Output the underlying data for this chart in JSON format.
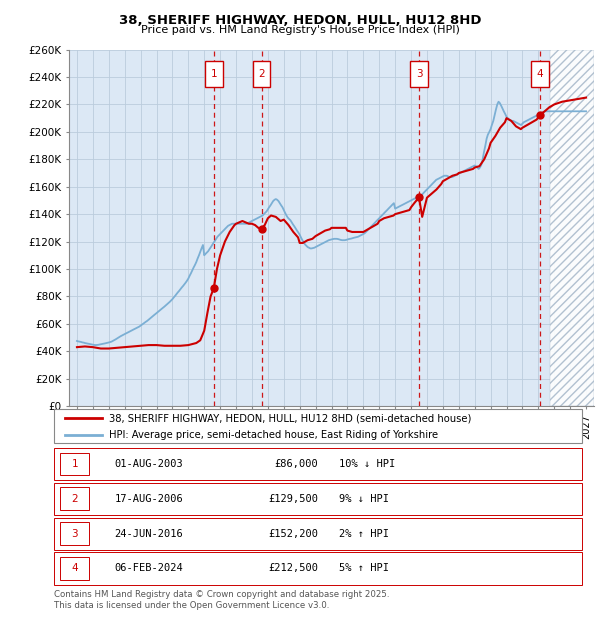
{
  "title": "38, SHERIFF HIGHWAY, HEDON, HULL, HU12 8HD",
  "subtitle": "Price paid vs. HM Land Registry's House Price Index (HPI)",
  "ylim": [
    0,
    260000
  ],
  "yticks": [
    0,
    20000,
    40000,
    60000,
    80000,
    100000,
    120000,
    140000,
    160000,
    180000,
    200000,
    220000,
    240000,
    260000
  ],
  "ytick_labels": [
    "£0",
    "£20K",
    "£40K",
    "£60K",
    "£80K",
    "£100K",
    "£120K",
    "£140K",
    "£160K",
    "£180K",
    "£200K",
    "£220K",
    "£240K",
    "£260K"
  ],
  "xlim_start": 1994.5,
  "xlim_end": 2027.5,
  "transactions": [
    {
      "num": 1,
      "date": "01-AUG-2003",
      "price": 86000,
      "year": 2003.6,
      "price_str": "£86,000",
      "hpi_diff": "10% ↓ HPI"
    },
    {
      "num": 2,
      "date": "17-AUG-2006",
      "price": 129500,
      "year": 2006.6,
      "price_str": "£129,500",
      "hpi_diff": "9% ↓ HPI"
    },
    {
      "num": 3,
      "date": "24-JUN-2016",
      "price": 152200,
      "year": 2016.5,
      "price_str": "£152,200",
      "hpi_diff": "2% ↑ HPI"
    },
    {
      "num": 4,
      "date": "06-FEB-2024",
      "price": 212500,
      "year": 2024.1,
      "price_str": "£212,500",
      "hpi_diff": "5% ↑ HPI"
    }
  ],
  "hpi_line_color": "#7bafd4",
  "price_line_color": "#cc0000",
  "transaction_color": "#cc0000",
  "grid_color": "#bbccdd",
  "bg_color": "#dce8f5",
  "legend_label_red": "38, SHERIFF HIGHWAY, HEDON, HULL, HU12 8HD (semi-detached house)",
  "legend_label_blue": "HPI: Average price, semi-detached house, East Riding of Yorkshire",
  "footnote": "Contains HM Land Registry data © Crown copyright and database right 2025.\nThis data is licensed under the Open Government Licence v3.0.",
  "hpi_data_x": [
    1995.0,
    1995.08,
    1995.17,
    1995.25,
    1995.33,
    1995.42,
    1995.5,
    1995.58,
    1995.67,
    1995.75,
    1995.83,
    1995.92,
    1996.0,
    1996.08,
    1996.17,
    1996.25,
    1996.33,
    1996.42,
    1996.5,
    1996.58,
    1996.67,
    1996.75,
    1996.83,
    1996.92,
    1997.0,
    1997.08,
    1997.17,
    1997.25,
    1997.33,
    1997.42,
    1997.5,
    1997.58,
    1997.67,
    1997.75,
    1997.83,
    1997.92,
    1998.0,
    1998.08,
    1998.17,
    1998.25,
    1998.33,
    1998.42,
    1998.5,
    1998.58,
    1998.67,
    1998.75,
    1998.83,
    1998.92,
    1999.0,
    1999.08,
    1999.17,
    1999.25,
    1999.33,
    1999.42,
    1999.5,
    1999.58,
    1999.67,
    1999.75,
    1999.83,
    1999.92,
    2000.0,
    2000.08,
    2000.17,
    2000.25,
    2000.33,
    2000.42,
    2000.5,
    2000.58,
    2000.67,
    2000.75,
    2000.83,
    2000.92,
    2001.0,
    2001.08,
    2001.17,
    2001.25,
    2001.33,
    2001.42,
    2001.5,
    2001.58,
    2001.67,
    2001.75,
    2001.83,
    2001.92,
    2002.0,
    2002.08,
    2002.17,
    2002.25,
    2002.33,
    2002.42,
    2002.5,
    2002.58,
    2002.67,
    2002.75,
    2002.83,
    2002.92,
    2003.0,
    2003.08,
    2003.17,
    2003.25,
    2003.33,
    2003.42,
    2003.5,
    2003.58,
    2003.67,
    2003.75,
    2003.83,
    2003.92,
    2004.0,
    2004.08,
    2004.17,
    2004.25,
    2004.33,
    2004.42,
    2004.5,
    2004.58,
    2004.67,
    2004.75,
    2004.83,
    2004.92,
    2005.0,
    2005.08,
    2005.17,
    2005.25,
    2005.33,
    2005.42,
    2005.5,
    2005.58,
    2005.67,
    2005.75,
    2005.83,
    2005.92,
    2006.0,
    2006.08,
    2006.17,
    2006.25,
    2006.33,
    2006.42,
    2006.5,
    2006.58,
    2006.67,
    2006.75,
    2006.83,
    2006.92,
    2007.0,
    2007.08,
    2007.17,
    2007.25,
    2007.33,
    2007.42,
    2007.5,
    2007.58,
    2007.67,
    2007.75,
    2007.83,
    2007.92,
    2008.0,
    2008.08,
    2008.17,
    2008.25,
    2008.33,
    2008.42,
    2008.5,
    2008.58,
    2008.67,
    2008.75,
    2008.83,
    2008.92,
    2009.0,
    2009.08,
    2009.17,
    2009.25,
    2009.33,
    2009.42,
    2009.5,
    2009.58,
    2009.67,
    2009.75,
    2009.83,
    2009.92,
    2010.0,
    2010.08,
    2010.17,
    2010.25,
    2010.33,
    2010.42,
    2010.5,
    2010.58,
    2010.67,
    2010.75,
    2010.83,
    2010.92,
    2011.0,
    2011.08,
    2011.17,
    2011.25,
    2011.33,
    2011.42,
    2011.5,
    2011.58,
    2011.67,
    2011.75,
    2011.83,
    2011.92,
    2012.0,
    2012.08,
    2012.17,
    2012.25,
    2012.33,
    2012.42,
    2012.5,
    2012.58,
    2012.67,
    2012.75,
    2012.83,
    2012.92,
    2013.0,
    2013.08,
    2013.17,
    2013.25,
    2013.33,
    2013.42,
    2013.5,
    2013.58,
    2013.67,
    2013.75,
    2013.83,
    2013.92,
    2014.0,
    2014.08,
    2014.17,
    2014.25,
    2014.33,
    2014.42,
    2014.5,
    2014.58,
    2014.67,
    2014.75,
    2014.83,
    2014.92,
    2015.0,
    2015.08,
    2015.17,
    2015.25,
    2015.33,
    2015.42,
    2015.5,
    2015.58,
    2015.67,
    2015.75,
    2015.83,
    2015.92,
    2016.0,
    2016.08,
    2016.17,
    2016.25,
    2016.33,
    2016.42,
    2016.5,
    2016.58,
    2016.67,
    2016.75,
    2016.83,
    2016.92,
    2017.0,
    2017.08,
    2017.17,
    2017.25,
    2017.33,
    2017.42,
    2017.5,
    2017.58,
    2017.67,
    2017.75,
    2017.83,
    2017.92,
    2018.0,
    2018.08,
    2018.17,
    2018.25,
    2018.33,
    2018.42,
    2018.5,
    2018.58,
    2018.67,
    2018.75,
    2018.83,
    2018.92,
    2019.0,
    2019.08,
    2019.17,
    2019.25,
    2019.33,
    2019.42,
    2019.5,
    2019.58,
    2019.67,
    2019.75,
    2019.83,
    2019.92,
    2020.0,
    2020.08,
    2020.17,
    2020.25,
    2020.33,
    2020.42,
    2020.5,
    2020.58,
    2020.67,
    2020.75,
    2020.83,
    2020.92,
    2021.0,
    2021.08,
    2021.17,
    2021.25,
    2021.33,
    2021.42,
    2021.5,
    2021.58,
    2021.67,
    2021.75,
    2021.83,
    2021.92,
    2022.0,
    2022.08,
    2022.17,
    2022.25,
    2022.33,
    2022.42,
    2022.5,
    2022.58,
    2022.67,
    2022.75,
    2022.83,
    2022.92,
    2023.0,
    2023.08,
    2023.17,
    2023.25,
    2023.33,
    2023.42,
    2023.5,
    2023.58,
    2023.67,
    2023.75,
    2023.83,
    2023.92,
    2024.0,
    2024.08,
    2024.17,
    2024.25,
    2024.33,
    2024.42,
    2024.5,
    2024.58,
    2024.67,
    2024.75,
    2025.0,
    2025.5,
    2026.0,
    2026.5,
    2027.0
  ],
  "hpi_data_y": [
    47500,
    47200,
    47000,
    46800,
    46500,
    46300,
    46000,
    45800,
    45500,
    45300,
    45100,
    44900,
    44700,
    44600,
    44500,
    44600,
    44700,
    44900,
    45100,
    45300,
    45500,
    45700,
    45900,
    46100,
    46400,
    46700,
    47000,
    47500,
    48000,
    48600,
    49200,
    49800,
    50400,
    51000,
    51500,
    52000,
    52500,
    53000,
    53500,
    54000,
    54500,
    55000,
    55500,
    56000,
    56500,
    57000,
    57500,
    58000,
    58700,
    59400,
    60100,
    60800,
    61500,
    62200,
    63000,
    63800,
    64600,
    65400,
    66200,
    67000,
    67800,
    68600,
    69400,
    70200,
    71000,
    71800,
    72600,
    73400,
    74200,
    75000,
    76000,
    77000,
    78000,
    79200,
    80400,
    81600,
    82800,
    84000,
    85200,
    86400,
    87600,
    88800,
    90000,
    91500,
    93000,
    95000,
    97000,
    99000,
    101000,
    103000,
    105000,
    107500,
    110000,
    112500,
    115000,
    117500,
    110000,
    111000,
    112000,
    113000,
    114500,
    116000,
    117500,
    119000,
    120500,
    122000,
    123500,
    124500,
    125500,
    126500,
    127500,
    128500,
    129500,
    130500,
    131500,
    132000,
    132500,
    133000,
    133000,
    133000,
    133000,
    133000,
    133000,
    133000,
    133000,
    133000,
    133000,
    133000,
    133000,
    133500,
    134000,
    134500,
    135000,
    135500,
    136000,
    136500,
    137000,
    137500,
    138000,
    138500,
    139000,
    140000,
    141000,
    142000,
    143500,
    145000,
    146500,
    148000,
    149500,
    150500,
    151000,
    150500,
    149500,
    148000,
    146500,
    145000,
    143000,
    141000,
    139000,
    137500,
    136500,
    135500,
    134000,
    132500,
    131000,
    129500,
    128000,
    126500,
    125000,
    123000,
    121000,
    119500,
    118000,
    117000,
    116000,
    115500,
    115000,
    115000,
    115200,
    115500,
    116000,
    116500,
    117000,
    117500,
    118000,
    118500,
    119000,
    119500,
    120000,
    120500,
    121000,
    121300,
    121600,
    121800,
    122000,
    122000,
    122000,
    121800,
    121500,
    121200,
    121000,
    121000,
    121000,
    121200,
    121500,
    121800,
    122000,
    122200,
    122500,
    122800,
    123000,
    123200,
    123500,
    124000,
    124500,
    125000,
    125500,
    126000,
    127000,
    128000,
    129000,
    130000,
    131000,
    132000,
    133000,
    134000,
    135000,
    136000,
    137000,
    138000,
    139000,
    140000,
    141000,
    142000,
    143000,
    144000,
    145000,
    146000,
    147000,
    148000,
    144000,
    144500,
    145000,
    145500,
    146000,
    146500,
    147000,
    147500,
    148000,
    148500,
    149000,
    149500,
    150000,
    150500,
    151000,
    151500,
    152000,
    152500,
    153000,
    153500,
    154000,
    155000,
    156000,
    157000,
    158000,
    159000,
    160000,
    161000,
    162000,
    163000,
    164000,
    165000,
    165500,
    166000,
    166500,
    167000,
    167500,
    168000,
    168000,
    168000,
    167500,
    167000,
    167000,
    167000,
    167500,
    168000,
    168500,
    169000,
    169500,
    170000,
    170500,
    171000,
    171500,
    172000,
    172500,
    173000,
    173500,
    174000,
    174500,
    175000,
    175500,
    175000,
    174000,
    173000,
    174000,
    176000,
    180000,
    185000,
    190000,
    195000,
    198000,
    200000,
    202000,
    205000,
    208000,
    212000,
    216000,
    220000,
    222000,
    221000,
    219000,
    217000,
    215000,
    213000,
    211000,
    210000,
    209000,
    208500,
    208000,
    208000,
    207500,
    207000,
    206500,
    206000,
    205500,
    205000,
    206000,
    207000,
    207500,
    208000,
    208500,
    209000,
    209500,
    210000,
    210500,
    211000,
    211500,
    212000,
    212500,
    213000,
    213500,
    214000,
    214500,
    215000,
    215000,
    215000,
    215000,
    215000,
    215000,
    215000,
    215000,
    215000,
    215000
  ],
  "price_data_x": [
    1995.0,
    1995.5,
    1996.0,
    1996.5,
    1997.0,
    1997.5,
    1998.0,
    1998.5,
    1999.0,
    1999.5,
    2000.0,
    2000.5,
    2001.0,
    2001.5,
    2002.0,
    2002.5,
    2002.75,
    2003.0,
    2003.2,
    2003.4,
    2003.6,
    2003.8,
    2004.0,
    2004.3,
    2004.6,
    2004.9,
    2005.0,
    2005.2,
    2005.4,
    2005.6,
    2005.8,
    2006.0,
    2006.2,
    2006.4,
    2006.6,
    2006.8,
    2007.0,
    2007.2,
    2007.5,
    2007.8,
    2008.0,
    2008.3,
    2008.6,
    2008.9,
    2009.0,
    2009.2,
    2009.5,
    2009.8,
    2010.0,
    2010.3,
    2010.6,
    2010.9,
    2011.0,
    2011.3,
    2011.6,
    2011.9,
    2012.0,
    2012.3,
    2012.6,
    2012.9,
    2013.0,
    2013.3,
    2013.6,
    2013.9,
    2014.0,
    2014.3,
    2014.6,
    2014.9,
    2015.0,
    2015.3,
    2015.6,
    2015.9,
    2016.0,
    2016.2,
    2016.5,
    2016.7,
    2017.0,
    2017.3,
    2017.6,
    2017.9,
    2018.0,
    2018.3,
    2018.6,
    2018.9,
    2019.0,
    2019.3,
    2019.6,
    2019.9,
    2020.0,
    2020.3,
    2020.6,
    2020.9,
    2021.0,
    2021.3,
    2021.6,
    2021.9,
    2022.0,
    2022.3,
    2022.6,
    2022.9,
    2023.0,
    2023.3,
    2023.6,
    2023.9,
    2024.1,
    2024.4,
    2024.7,
    2025.0,
    2025.5,
    2026.0,
    2026.5,
    2027.0
  ],
  "price_data_y": [
    43000,
    43500,
    43000,
    42000,
    42000,
    42500,
    43000,
    43500,
    44000,
    44500,
    44500,
    44000,
    44000,
    44000,
    44500,
    46000,
    48000,
    55000,
    68000,
    80000,
    86000,
    100000,
    110000,
    120000,
    127000,
    132000,
    133000,
    134000,
    135000,
    134000,
    133000,
    133000,
    132000,
    130000,
    129500,
    132000,
    137000,
    139000,
    138000,
    135000,
    136000,
    132000,
    127000,
    123000,
    119000,
    119000,
    121000,
    122000,
    124000,
    126000,
    128000,
    129000,
    130000,
    130000,
    130000,
    130000,
    128000,
    127000,
    127000,
    127000,
    127000,
    129000,
    131000,
    133000,
    135000,
    137000,
    138000,
    139000,
    140000,
    141000,
    142000,
    143000,
    145000,
    148000,
    152200,
    138000,
    152000,
    155000,
    158000,
    162000,
    164000,
    166000,
    168000,
    169000,
    170000,
    171000,
    172000,
    173000,
    174000,
    175000,
    180000,
    188000,
    192000,
    197000,
    203000,
    207000,
    210000,
    208000,
    204000,
    202000,
    203000,
    205000,
    207000,
    209000,
    212500,
    215000,
    218000,
    220000,
    222000,
    223000,
    224000,
    225000
  ]
}
